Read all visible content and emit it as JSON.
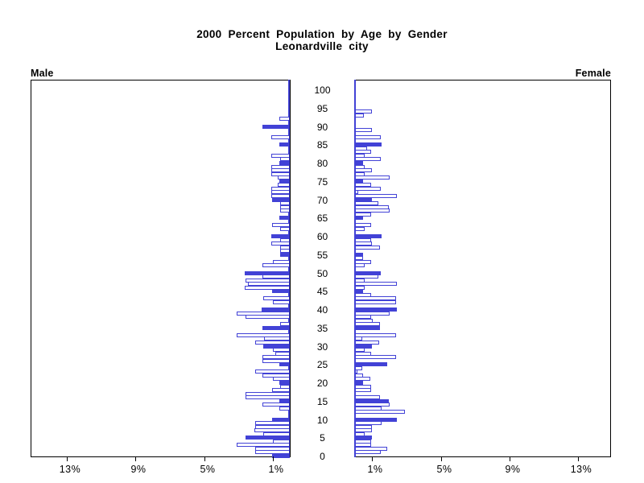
{
  "title": {
    "line1": "2000 Percent Population by Age by Gender",
    "line2": "Leonardville city"
  },
  "panels": {
    "left_label": "Male",
    "right_label": "Female"
  },
  "axes": {
    "age_tick_labels": [
      "0",
      "5",
      "10",
      "15",
      "20",
      "25",
      "30",
      "35",
      "40",
      "45",
      "50",
      "55",
      "60",
      "65",
      "70",
      "75",
      "80",
      "85",
      "90",
      "95",
      "100"
    ],
    "male_pct_tick_labels": [
      "13%",
      "9%",
      "5%",
      "1%"
    ],
    "male_pct_tick_values": [
      13,
      9,
      5,
      1
    ],
    "female_pct_tick_labels": [
      "1%",
      "5%",
      "9%",
      "13%"
    ],
    "female_pct_tick_values": [
      1,
      5,
      9,
      13
    ]
  },
  "colors": {
    "bar_blue": "#4242d6",
    "outline_bar_fill": "#ffffff",
    "frame_black": "#000000",
    "background": "#ffffff"
  },
  "chart_data": {
    "type": "bar",
    "variant": "population-pyramid",
    "title": "2000 Percent Population by Age by Gender",
    "subtitle": "Leonardville city",
    "xlabel_unit": "percent of population",
    "age_min": 0,
    "age_max": 100,
    "age_label_step": 5,
    "x_ticks_pct": [
      1,
      5,
      9,
      13
    ],
    "x_max_pct": 15,
    "fill_rule": "bars at ages divisible by 5 are solid blue; all other ages are white with blue outline",
    "legend_position": "none",
    "grid": false,
    "series": [
      {
        "name": "Male",
        "side": "left",
        "ages": "0-100 by single year, index = age",
        "values_pct": [
          1.05,
          2.0,
          2.0,
          3.1,
          1.0,
          2.6,
          1.55,
          2.05,
          2.0,
          2.0,
          1.05,
          0,
          0,
          0.6,
          1.6,
          0.6,
          2.6,
          2.6,
          1.05,
          0.55,
          0.6,
          1.0,
          1.6,
          2.0,
          0,
          0.6,
          1.6,
          1.6,
          0.85,
          1.0,
          1.55,
          2.0,
          1.5,
          3.1,
          0,
          1.6,
          0.55,
          0,
          2.6,
          3.1,
          1.65,
          0,
          1.0,
          1.55,
          0,
          1.05,
          2.65,
          2.45,
          2.6,
          1.6,
          2.65,
          0,
          1.6,
          1.0,
          0,
          0.55,
          0.55,
          0.55,
          1.1,
          0.55,
          1.1,
          0,
          0.55,
          1.05,
          0,
          0.6,
          0,
          0.55,
          0.55,
          0.55,
          1.05,
          1.1,
          1.1,
          1.1,
          0.7,
          0.6,
          0.7,
          1.1,
          1.1,
          1.1,
          0.6,
          0.55,
          1.1,
          0,
          0,
          0.6,
          0,
          1.1,
          0,
          0,
          1.6,
          0,
          0.6,
          0,
          0,
          0,
          0,
          0,
          0,
          0,
          0
        ]
      },
      {
        "name": "Female",
        "side": "right",
        "ages": "0-100 by single year, index = age",
        "values_pct": [
          0,
          1.5,
          1.9,
          0.95,
          0.93,
          0.97,
          0.55,
          0.97,
          0.97,
          1.53,
          2.45,
          0,
          2.9,
          1.53,
          2.0,
          1.95,
          1.45,
          0,
          0.95,
          0.93,
          0.47,
          0.9,
          0.45,
          0.15,
          0.4,
          1.9,
          0,
          2.4,
          0.93,
          0.55,
          0.97,
          1.4,
          0.42,
          2.38,
          0,
          1.45,
          1.45,
          1.05,
          0.93,
          2.0,
          2.45,
          0,
          2.4,
          2.4,
          0.93,
          0.47,
          0.55,
          2.45,
          0.55,
          1.37,
          1.5,
          0,
          0.55,
          0.93,
          0.47,
          0.47,
          0,
          1.45,
          0.97,
          0.93,
          1.53,
          0,
          0.55,
          0.93,
          0,
          0.47,
          0.93,
          2.0,
          1.95,
          1.37,
          0.97,
          2.45,
          0.2,
          1.5,
          0.93,
          0.47,
          2.0,
          0.55,
          1.0,
          0.55,
          0.47,
          1.5,
          0.55,
          0.93,
          0.7,
          1.53,
          0,
          1.48,
          0,
          0.98,
          0,
          0,
          0,
          0.5,
          0.98,
          0,
          0,
          0,
          0,
          0,
          0
        ]
      }
    ]
  }
}
